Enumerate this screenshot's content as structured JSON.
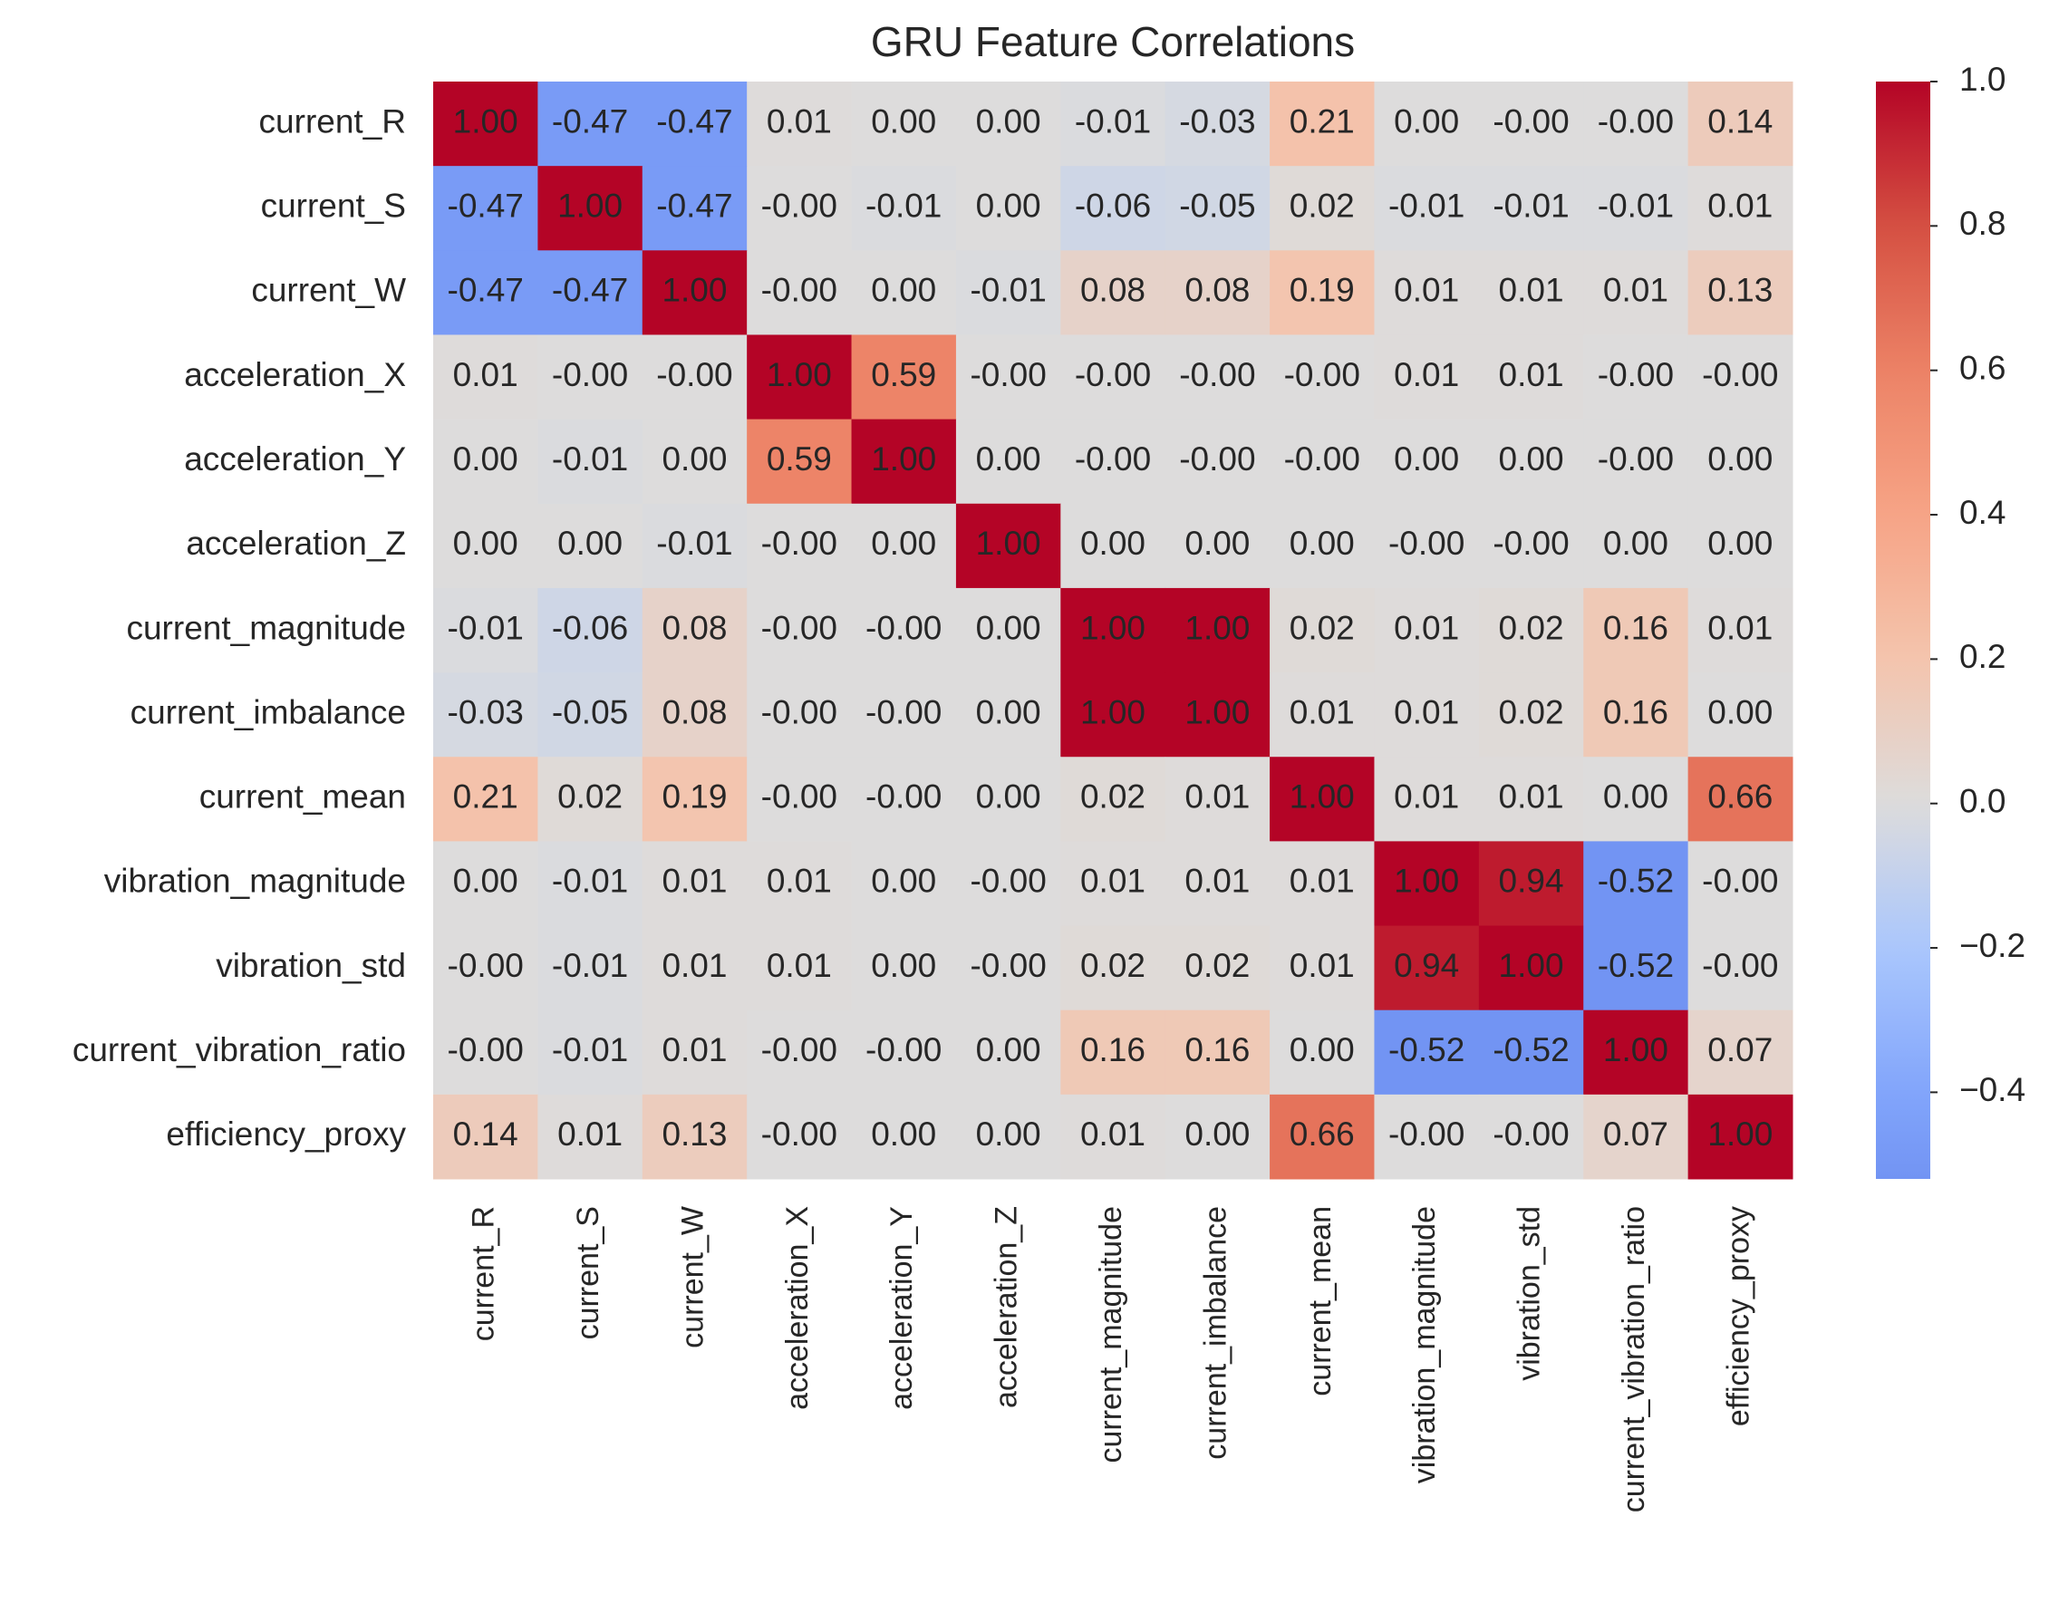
{
  "chart_data": {
    "type": "heatmap",
    "title": "GRU Feature Correlations",
    "categories": [
      "current_R",
      "current_S",
      "current_W",
      "acceleration_X",
      "acceleration_Y",
      "acceleration_Z",
      "current_magnitude",
      "current_imbalance",
      "current_mean",
      "vibration_magnitude",
      "vibration_std",
      "current_vibration_ratio",
      "efficiency_proxy"
    ],
    "values": [
      [
        1,
        -0.47,
        -0.47,
        0.01,
        0,
        0,
        -0.01,
        -0.03,
        0.21,
        0,
        0,
        0,
        0.14
      ],
      [
        -0.47,
        1,
        -0.47,
        0,
        -0.01,
        0,
        -0.06,
        -0.05,
        0.02,
        -0.01,
        -0.01,
        -0.01,
        0.01
      ],
      [
        -0.47,
        -0.47,
        1,
        0,
        0,
        -0.01,
        0.08,
        0.08,
        0.19,
        0.01,
        0.01,
        0.01,
        0.13
      ],
      [
        0.01,
        0,
        0,
        1,
        0.59,
        0,
        0,
        0,
        0,
        0.01,
        0.01,
        0,
        0
      ],
      [
        0,
        -0.01,
        0,
        0.59,
        1,
        0,
        0,
        0,
        0,
        0,
        0,
        0,
        0
      ],
      [
        0,
        0,
        -0.01,
        0,
        0,
        1,
        0,
        0,
        0,
        0,
        0,
        0,
        0
      ],
      [
        -0.01,
        -0.06,
        0.08,
        0,
        0,
        0,
        1,
        1,
        0.02,
        0.01,
        0.02,
        0.16,
        0.01
      ],
      [
        -0.03,
        -0.05,
        0.08,
        0,
        0,
        0,
        1,
        1,
        0.01,
        0.01,
        0.02,
        0.16,
        0
      ],
      [
        0.21,
        0.02,
        0.19,
        0,
        0,
        0,
        0.02,
        0.01,
        1,
        0.01,
        0.01,
        0,
        0.66
      ],
      [
        0,
        -0.01,
        0.01,
        0.01,
        0,
        0,
        0.01,
        0.01,
        0.01,
        1,
        0.94,
        -0.52,
        0
      ],
      [
        0,
        -0.01,
        0.01,
        0.01,
        0,
        0,
        0.02,
        0.02,
        0.01,
        0.94,
        1,
        -0.52,
        0
      ],
      [
        0,
        -0.01,
        0.01,
        0,
        0,
        0,
        0.16,
        0.16,
        0,
        -0.52,
        -0.52,
        1,
        0.07
      ],
      [
        0.14,
        0.01,
        0.13,
        0,
        0,
        0,
        0.01,
        0,
        0.66,
        0,
        0,
        0.07,
        1
      ]
    ],
    "value_labels": [
      [
        "1.00",
        "-0.47",
        "-0.47",
        "0.01",
        "0.00",
        "0.00",
        "-0.01",
        "-0.03",
        "0.21",
        "0.00",
        "-0.00",
        "-0.00",
        "0.14"
      ],
      [
        "-0.47",
        "1.00",
        "-0.47",
        "-0.00",
        "-0.01",
        "0.00",
        "-0.06",
        "-0.05",
        "0.02",
        "-0.01",
        "-0.01",
        "-0.01",
        "0.01"
      ],
      [
        "-0.47",
        "-0.47",
        "1.00",
        "-0.00",
        "0.00",
        "-0.01",
        "0.08",
        "0.08",
        "0.19",
        "0.01",
        "0.01",
        "0.01",
        "0.13"
      ],
      [
        "0.01",
        "-0.00",
        "-0.00",
        "1.00",
        "0.59",
        "-0.00",
        "-0.00",
        "-0.00",
        "-0.00",
        "0.01",
        "0.01",
        "-0.00",
        "-0.00"
      ],
      [
        "0.00",
        "-0.01",
        "0.00",
        "0.59",
        "1.00",
        "0.00",
        "-0.00",
        "-0.00",
        "-0.00",
        "0.00",
        "0.00",
        "-0.00",
        "0.00"
      ],
      [
        "0.00",
        "0.00",
        "-0.01",
        "-0.00",
        "0.00",
        "1.00",
        "0.00",
        "0.00",
        "0.00",
        "-0.00",
        "-0.00",
        "0.00",
        "0.00"
      ],
      [
        "-0.01",
        "-0.06",
        "0.08",
        "-0.00",
        "-0.00",
        "0.00",
        "1.00",
        "1.00",
        "0.02",
        "0.01",
        "0.02",
        "0.16",
        "0.01"
      ],
      [
        "-0.03",
        "-0.05",
        "0.08",
        "-0.00",
        "-0.00",
        "0.00",
        "1.00",
        "1.00",
        "0.01",
        "0.01",
        "0.02",
        "0.16",
        "0.00"
      ],
      [
        "0.21",
        "0.02",
        "0.19",
        "-0.00",
        "-0.00",
        "0.00",
        "0.02",
        "0.01",
        "1.00",
        "0.01",
        "0.01",
        "0.00",
        "0.66"
      ],
      [
        "0.00",
        "-0.01",
        "0.01",
        "0.01",
        "0.00",
        "-0.00",
        "0.01",
        "0.01",
        "0.01",
        "1.00",
        "0.94",
        "-0.52",
        "-0.00"
      ],
      [
        "-0.00",
        "-0.01",
        "0.01",
        "0.01",
        "0.00",
        "-0.00",
        "0.02",
        "0.02",
        "0.01",
        "0.94",
        "1.00",
        "-0.52",
        "-0.00"
      ],
      [
        "-0.00",
        "-0.01",
        "0.01",
        "-0.00",
        "-0.00",
        "0.00",
        "0.16",
        "0.16",
        "0.00",
        "-0.52",
        "-0.52",
        "1.00",
        "0.07"
      ],
      [
        "0.14",
        "0.01",
        "0.13",
        "-0.00",
        "0.00",
        "0.00",
        "0.01",
        "0.00",
        "0.66",
        "-0.00",
        "-0.00",
        "0.07",
        "1.00"
      ]
    ],
    "colormap": "coolwarm",
    "center": 0,
    "zlim": [
      -0.52,
      1.0
    ],
    "zticks": [
      {
        "value": 1.0,
        "label": "1.0"
      },
      {
        "value": 0.8,
        "label": "0.8"
      },
      {
        "value": 0.6,
        "label": "0.6"
      },
      {
        "value": 0.4,
        "label": "0.4"
      },
      {
        "value": 0.2,
        "label": "0.2"
      },
      {
        "value": 0.0,
        "label": "0.0"
      },
      {
        "value": -0.2,
        "label": "−0.2"
      },
      {
        "value": -0.4,
        "label": "−0.4"
      }
    ]
  }
}
